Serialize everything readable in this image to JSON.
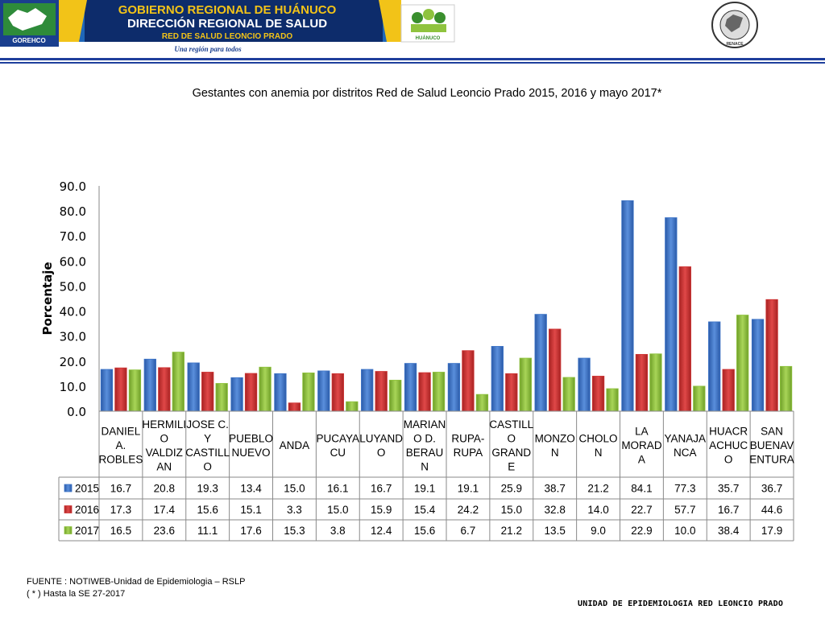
{
  "header": {
    "line1": "GOBIERNO REGIONAL DE HUÁNUCO",
    "line2": "DIRECCIÓN REGIONAL DE SALUD",
    "line3": "RED DE SALUD LEONCIO PRADO",
    "slogan": "Una región para todos",
    "logo_left_text": "GOREHCO",
    "logo_mid_text": "HUÁNUCO",
    "logo_right_ring": "RED NACIONAL DE EPIDEMIOLOGÍA",
    "logo_right_bottom": "RENACE",
    "colors": {
      "banner_dark": "#0d2c6b",
      "banner_blue": "#2f7cc8",
      "gold": "#f2c318",
      "green": "#3a8f2e",
      "rule": "#1f3f9c"
    }
  },
  "title": "Gestantes con anemia por distritos Red de Salud Leoncio Prado  2015, 2016 y mayo  2017*",
  "chart_data": {
    "type": "bar",
    "ylabel": "Porcentaje",
    "ylim": [
      0,
      90
    ],
    "yticks": [
      "0.0",
      "10.0",
      "20.0",
      "30.0",
      "40.0",
      "50.0",
      "60.0",
      "70.0",
      "80.0",
      "90.0"
    ],
    "grid": false,
    "legend": "data-table",
    "categories": [
      [
        "DANIEL",
        "A.",
        "ROBLES"
      ],
      [
        "HERMILI",
        "O",
        "VALDIZ",
        "AN"
      ],
      [
        "JOSE C.",
        "Y",
        "CASTILL",
        "O"
      ],
      [
        "PUEBLO",
        "NUEVO"
      ],
      [
        "ANDA"
      ],
      [
        "PUCAYA",
        "CU"
      ],
      [
        "LUYAND",
        "O"
      ],
      [
        "MARIAN",
        "O D.",
        "BERAU",
        "N"
      ],
      [
        "RUPA-",
        "RUPA"
      ],
      [
        "CASTILL",
        "O",
        "GRAND",
        "E"
      ],
      [
        "MONZO",
        "N"
      ],
      [
        "CHOLO",
        "N"
      ],
      [
        "LA",
        "MORAD",
        "A"
      ],
      [
        "YANAJA",
        "NCA"
      ],
      [
        "HUACR",
        "ACHUC",
        "O"
      ],
      [
        "SAN",
        "BUENAV",
        "ENTURA"
      ]
    ],
    "series": [
      {
        "name": "2015",
        "color": "#3d74c7",
        "values": [
          16.7,
          20.8,
          19.3,
          13.4,
          15.0,
          16.1,
          16.7,
          19.1,
          19.1,
          25.9,
          38.7,
          21.2,
          84.1,
          77.3,
          35.7,
          36.7
        ],
        "labels": [
          "16.7",
          "20.8",
          "19.3",
          "13.4",
          "15.0",
          "16.1",
          "16.7",
          "19.1",
          "19.1",
          "25.9",
          "38.7",
          "21.2",
          "84.1",
          "77.3",
          "35.7",
          "36.7"
        ]
      },
      {
        "name": "2016",
        "color": "#cf3434",
        "values": [
          17.3,
          17.4,
          15.6,
          15.1,
          3.3,
          15.0,
          15.9,
          15.4,
          24.2,
          15.0,
          32.8,
          14.0,
          22.7,
          57.7,
          16.7,
          44.6
        ],
        "labels": [
          "17.3",
          "17.4",
          "15.6",
          "15.1",
          "3.3",
          "15.0",
          "15.9",
          "15.4",
          "24.2",
          "15.0",
          "32.8",
          "14.0",
          "22.7",
          "57.7",
          "16.7",
          "44.6"
        ]
      },
      {
        "name": "2017",
        "color": "#8fc33e",
        "values": [
          16.5,
          23.6,
          11.1,
          17.6,
          15.3,
          3.8,
          12.4,
          15.6,
          6.7,
          21.2,
          13.5,
          9.0,
          22.9,
          10.0,
          38.4,
          17.9
        ],
        "labels": [
          "16.5",
          "23.6",
          "11.1",
          "17.6",
          "15.3",
          "3.8",
          "12.4",
          "15.6",
          "6.7",
          "21.2",
          "13.5",
          "9.0",
          "22.9",
          "10.0",
          "38.4",
          "17.9"
        ]
      }
    ]
  },
  "footer": {
    "source": "FUENTE : NOTIWEB-Unidad de Epidemiologia – RSLP",
    "note": "( * ) Hasta la SE  27-2017",
    "unit": "UNIDAD  DE EPIDEMIOLOGIA RED LEONCIO PRADO"
  }
}
